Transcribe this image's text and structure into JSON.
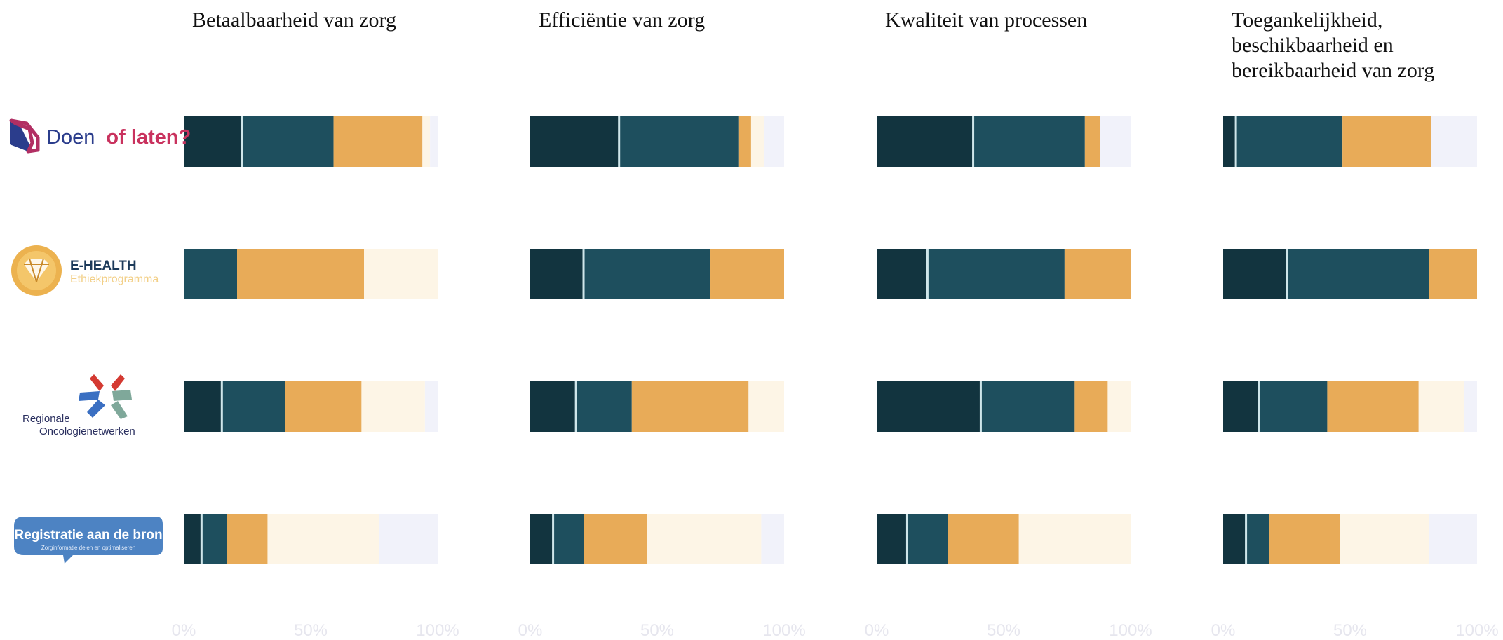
{
  "chart_data": {
    "type": "bar",
    "stacked": true,
    "orientation": "horizontal",
    "xlim": [
      0,
      100
    ],
    "x_tick_labels": [
      "0%",
      "50%",
      "100%"
    ],
    "grid": false,
    "legend": "none",
    "colors": [
      "#12343f",
      "#1e4f5e",
      "#e8ab58",
      "#fdf5e6",
      "#f1f2fa"
    ],
    "rows": [
      {
        "id": "doen",
        "logo": "doen-of-laten-logo"
      },
      {
        "id": "ehealth",
        "logo": "ehealth-logo"
      },
      {
        "id": "regionale",
        "logo": "regionale-oncologienetwerken-logo"
      },
      {
        "id": "registratie",
        "logo": "registratie-aan-de-bron-logo"
      }
    ],
    "panels": [
      {
        "title_lines": [
          "Betaalbaarheid van zorg"
        ],
        "bars": [
          [
            23,
            36,
            35,
            3,
            3
          ],
          [
            0,
            21,
            50,
            29,
            0
          ],
          [
            15,
            25,
            30,
            25,
            5
          ],
          [
            7,
            10,
            16,
            44,
            23
          ]
        ]
      },
      {
        "title_lines": [
          "Efficiëntie van zorg"
        ],
        "bars": [
          [
            35,
            47,
            5,
            5,
            8
          ],
          [
            21,
            50,
            29,
            0,
            0
          ],
          [
            18,
            22,
            46,
            14,
            0
          ],
          [
            9,
            12,
            25,
            45,
            9
          ]
        ]
      },
      {
        "title_lines": [
          "Kwaliteit van processen"
        ],
        "bars": [
          [
            38,
            44,
            6,
            0,
            12
          ],
          [
            20,
            54,
            26,
            0,
            0
          ],
          [
            41,
            37,
            13,
            9,
            0
          ],
          [
            12,
            16,
            28,
            44,
            0
          ]
        ]
      },
      {
        "title_lines": [
          "Toegankelijkheid,",
          "beschikbaarheid en",
          "bereikbaarheid van zorg"
        ],
        "bars": [
          [
            5,
            42,
            35,
            0,
            18
          ],
          [
            25,
            56,
            19,
            0,
            0
          ],
          [
            14,
            27,
            36,
            18,
            5
          ],
          [
            9,
            9,
            28,
            35,
            19
          ]
        ]
      }
    ]
  },
  "logos": {
    "doen": {
      "word1": "Doen",
      "word2": "of laten?"
    },
    "ehealth": {
      "line1": "E-HEALTH",
      "line2": "Ethiekprogramma"
    },
    "regionale": {
      "line1": "Regionale",
      "line2": "Oncologienetwerken"
    },
    "registratie": {
      "line1": "Registratie aan de bron",
      "line2": "Zorginformatie delen en optimaliseren"
    }
  }
}
